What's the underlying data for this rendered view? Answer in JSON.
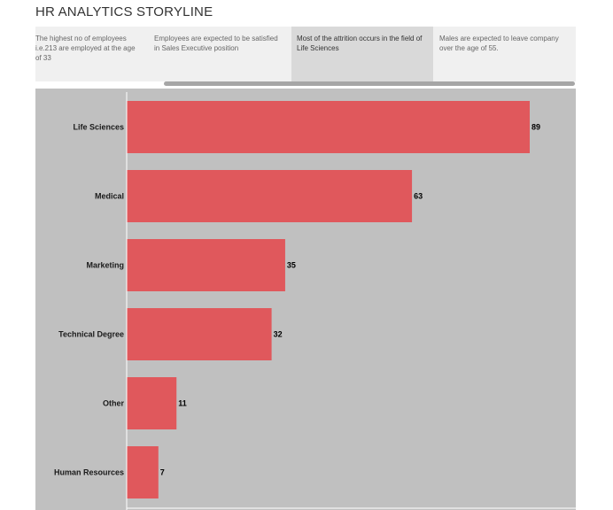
{
  "title": "HR ANALYTICS STORYLINE",
  "story_points": [
    {
      "text": "The highest no of employees i.e.213 are employed at the age of 33",
      "active": false
    },
    {
      "text": "Employees are expected to be satisfied in Sales Executive position",
      "active": false
    },
    {
      "text": "Most of the attrition occurs in the field of Life Sciences",
      "active": true
    },
    {
      "text": "Males are expected to leave company over the age of 55.",
      "active": false
    }
  ],
  "colors": {
    "bar": "#e0585c",
    "chart_bg": "#c0c0c0",
    "axis": "#ffffff"
  },
  "chart_data": {
    "type": "bar",
    "orientation": "horizontal",
    "categories": [
      "Life Sciences",
      "Medical",
      "Marketing",
      "Technical Degree",
      "Other",
      "Human Resources"
    ],
    "values": [
      89,
      63,
      35,
      32,
      11,
      7
    ],
    "xlim": [
      0,
      92
    ],
    "grid": false,
    "data_labels": true
  }
}
